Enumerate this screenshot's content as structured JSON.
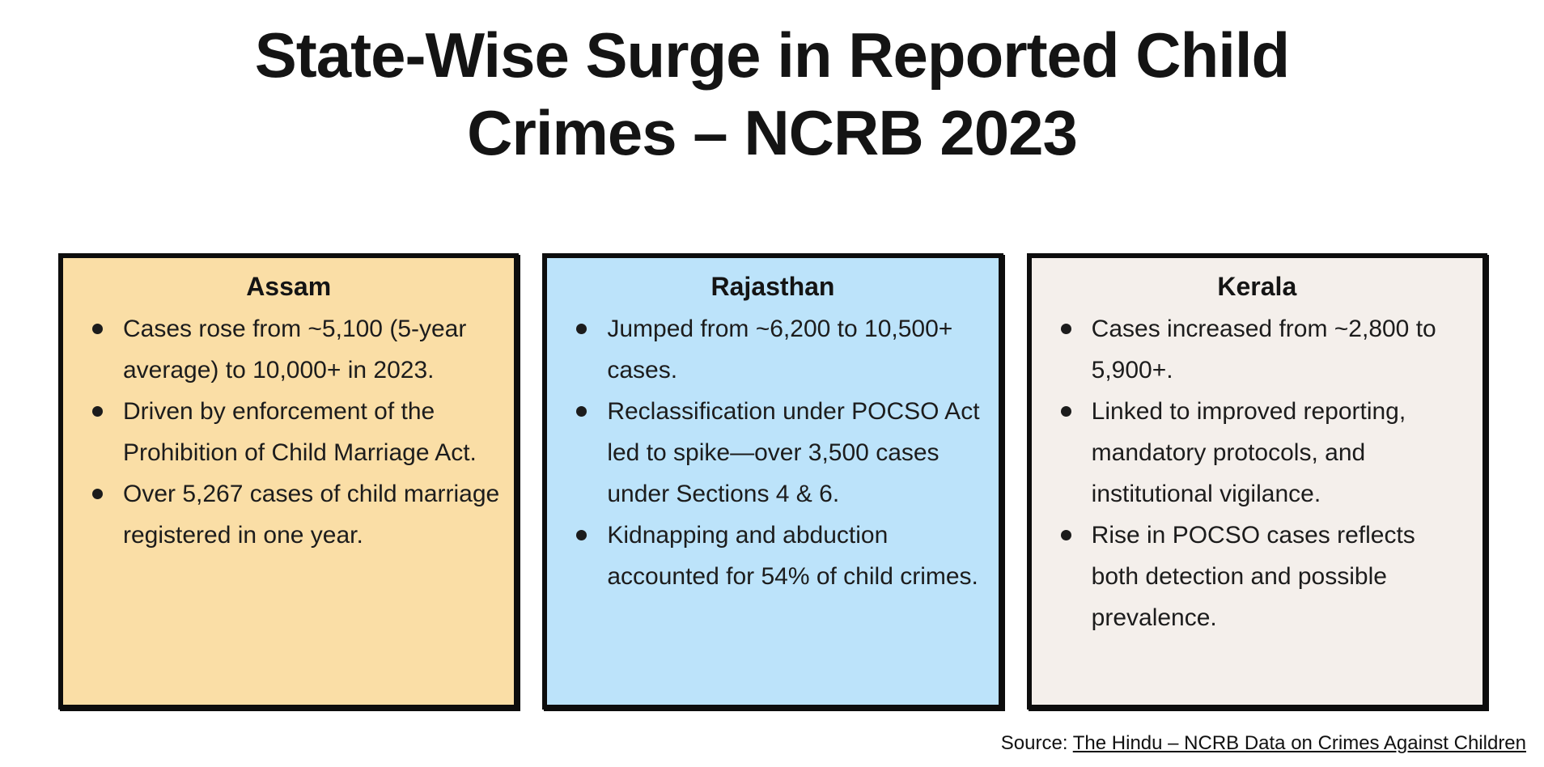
{
  "page": {
    "background": "#FFFFFF",
    "text_color": "#1C1C1C",
    "border_color": "#0D0D0D"
  },
  "title": {
    "full_text": "State-Wise Surge in Reported Child Crimes – NCRB 2023",
    "lines": [
      "State-Wise Surge in Reported Child",
      "Crimes – NCRB 2023"
    ]
  },
  "cards": [
    {
      "state": "Assam",
      "bg_color": "#FADEA6",
      "bullets": [
        "Cases rose from ~5,100 (5-year average) to 10,000+ in 2023.",
        "Driven by enforcement of the Prohibition of Child Marriage Act.",
        "Over 5,267 cases of child marriage registered in one year."
      ]
    },
    {
      "state": "Rajasthan",
      "bg_color": "#BCE3FA",
      "bullets": [
        "Jumped from ~6,200 to 10,500+ cases.",
        "Reclassification under POCSO Act led to spike—over 3,500 cases under Sections 4 & 6.",
        "Kidnapping and abduction accounted for 54% of child crimes."
      ]
    },
    {
      "state": "Kerala",
      "bg_color": "#F4EFEB",
      "bullets": [
        "Cases increased from ~2,800 to 5,900+.",
        "Linked to improved reporting, mandatory protocols, and institutional vigilance.",
        "Rise in POCSO cases reflects both detection and possible prevalence."
      ]
    }
  ],
  "source": {
    "label": "Source: ",
    "link_text": "The Hindu – NCRB Data on Crimes Against Children"
  }
}
